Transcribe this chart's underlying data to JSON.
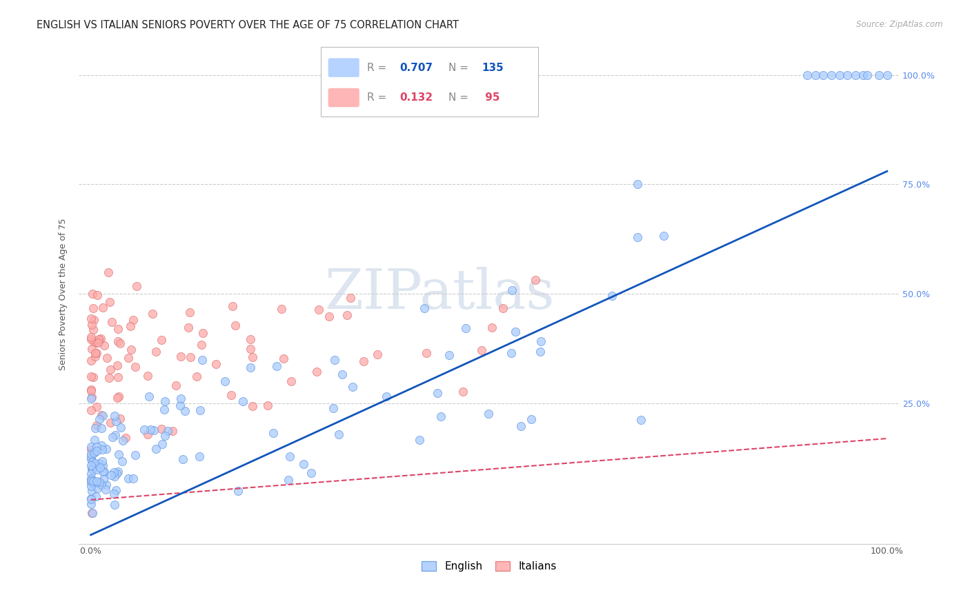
{
  "title": "ENGLISH VS ITALIAN SENIORS POVERTY OVER THE AGE OF 75 CORRELATION CHART",
  "source": "Source: ZipAtlas.com",
  "ylabel": "Seniors Poverty Over the Age of 75",
  "english_R": 0.707,
  "english_N": 135,
  "italian_R": 0.132,
  "italian_N": 95,
  "english_color": "#aaccff",
  "italian_color": "#ffaaaa",
  "english_line_color": "#1155bb",
  "italian_line_color": "#dd4466",
  "english_edge_color": "#6699dd",
  "italian_edge_color": "#dd7777",
  "background_color": "#ffffff",
  "watermark_color": "#dde5f0",
  "title_fontsize": 10.5,
  "source_fontsize": 8.5,
  "legend_fontsize": 11,
  "axis_label_fontsize": 9,
  "tick_fontsize": 9,
  "right_tick_color": "#5588ee",
  "grid_color": "#cccccc"
}
